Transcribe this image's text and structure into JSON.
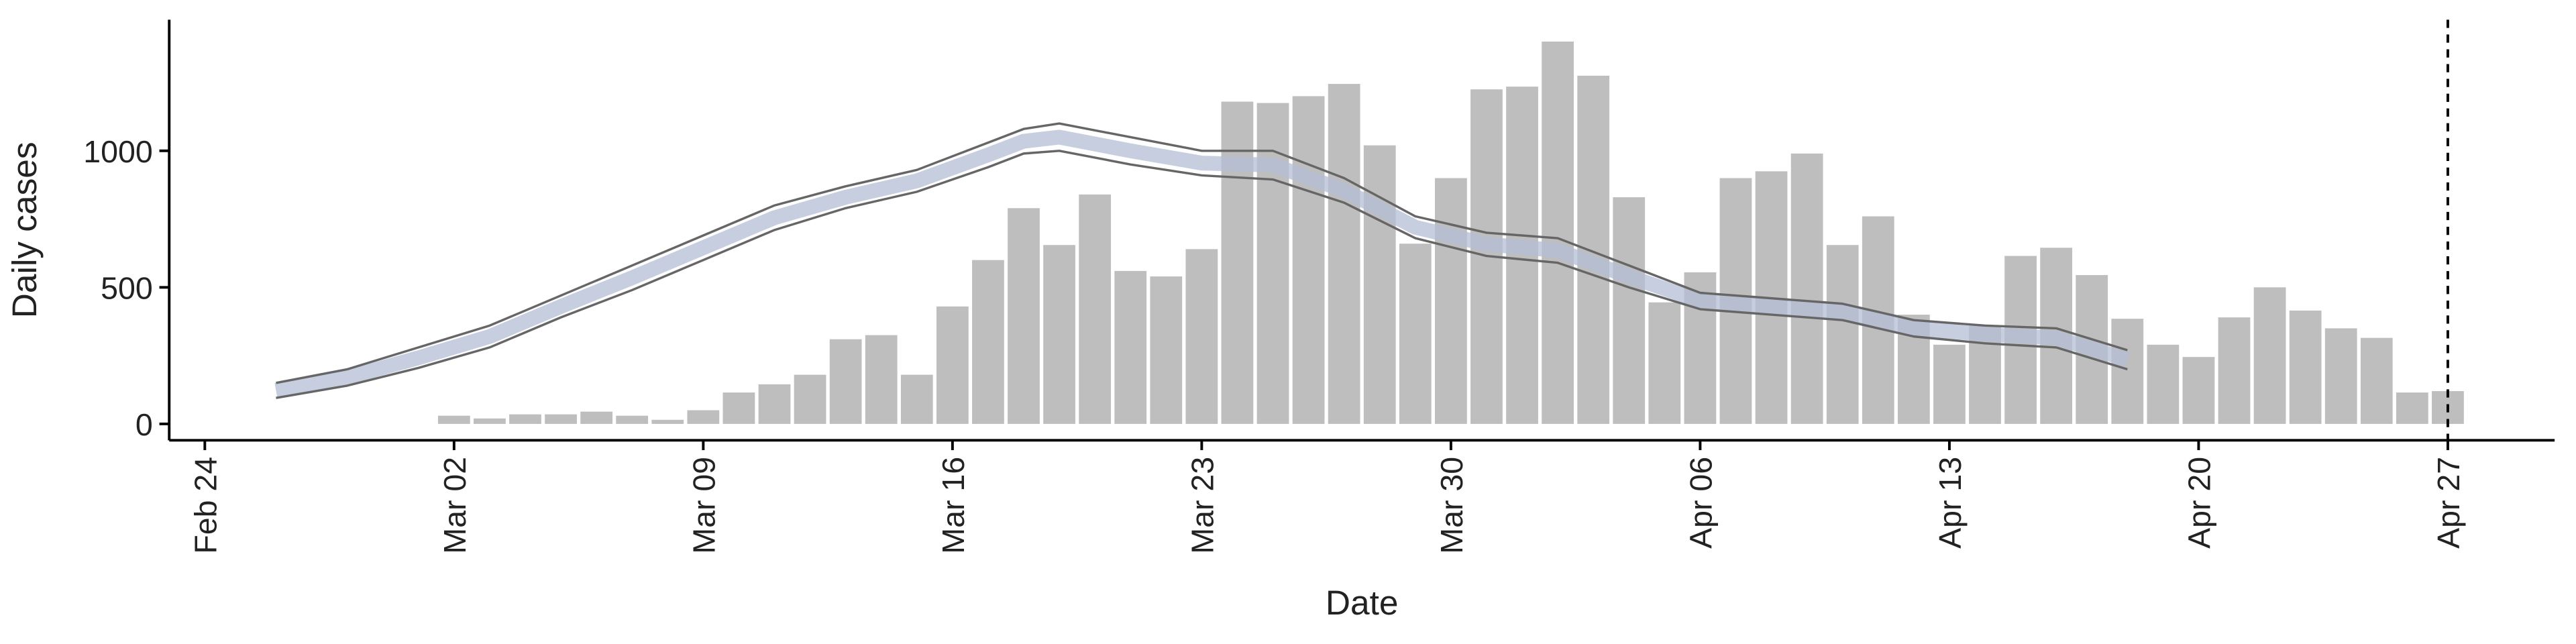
{
  "chart_data": {
    "type": "bar",
    "x_label": "Date",
    "y_label": "Daily cases",
    "x": [
      "Mar 02",
      "Mar 03",
      "Mar 04",
      "Mar 05",
      "Mar 06",
      "Mar 07",
      "Mar 08",
      "Mar 09",
      "Mar 10",
      "Mar 11",
      "Mar 12",
      "Mar 13",
      "Mar 14",
      "Mar 15",
      "Mar 16",
      "Mar 17",
      "Mar 18",
      "Mar 19",
      "Mar 20",
      "Mar 21",
      "Mar 22",
      "Mar 23",
      "Mar 24",
      "Mar 25",
      "Mar 26",
      "Mar 27",
      "Mar 28",
      "Mar 29",
      "Mar 30",
      "Mar 31",
      "Apr 01",
      "Apr 02",
      "Apr 03",
      "Apr 04",
      "Apr 05",
      "Apr 06",
      "Apr 07",
      "Apr 08",
      "Apr 09",
      "Apr 10",
      "Apr 11",
      "Apr 12",
      "Apr 13",
      "Apr 14",
      "Apr 15",
      "Apr 16",
      "Apr 17",
      "Apr 18",
      "Apr 19",
      "Apr 20",
      "Apr 21",
      "Apr 22",
      "Apr 23",
      "Apr 24",
      "Apr 25",
      "Apr 26",
      "Apr 27"
    ],
    "values": [
      30,
      20,
      35,
      35,
      45,
      30,
      15,
      50,
      115,
      145,
      180,
      310,
      325,
      180,
      430,
      600,
      790,
      655,
      840,
      560,
      540,
      640,
      1180,
      1175,
      1200,
      1245,
      1020,
      660,
      900,
      1225,
      1235,
      1400,
      1275,
      830,
      445,
      555,
      900,
      925,
      990,
      655,
      760,
      400,
      290,
      360,
      615,
      645,
      545,
      385,
      290,
      245,
      390,
      500,
      415,
      350,
      315,
      115,
      120
    ],
    "color": "#bebebe",
    "band": {
      "x": [
        "Feb 26",
        "Feb 28",
        "Mar 01",
        "Mar 03",
        "Mar 05",
        "Mar 07",
        "Mar 09",
        "Mar 11",
        "Mar 13",
        "Mar 15",
        "Mar 17",
        "Mar 18",
        "Mar 19",
        "Mar 21",
        "Mar 23",
        "Mar 25",
        "Mar 27",
        "Mar 29",
        "Mar 31",
        "Apr 02",
        "Apr 04",
        "Apr 06",
        "Apr 08",
        "Apr 10",
        "Apr 12",
        "Apr 14",
        "Apr 16",
        "Apr 18"
      ],
      "upper": [
        150,
        200,
        280,
        360,
        470,
        580,
        690,
        800,
        870,
        930,
        1030,
        1080,
        1100,
        1050,
        1000,
        1000,
        900,
        760,
        700,
        680,
        580,
        480,
        460,
        440,
        380,
        360,
        350,
        270
      ],
      "lower": [
        95,
        140,
        205,
        280,
        390,
        490,
        600,
        710,
        790,
        850,
        940,
        990,
        1000,
        950,
        910,
        895,
        810,
        680,
        615,
        590,
        500,
        420,
        400,
        380,
        320,
        295,
        280,
        200
      ],
      "mid": [
        122,
        170,
        242,
        320,
        430,
        535,
        645,
        755,
        830,
        890,
        985,
        1035,
        1050,
        1000,
        955,
        948,
        855,
        720,
        658,
        635,
        540,
        450,
        430,
        410,
        350,
        328,
        315,
        235
      ],
      "line_color": "#666666",
      "mid_color": "#b4bdd6"
    },
    "xlim": [
      "Feb 23",
      "Apr 30"
    ],
    "xticks": [
      "Feb 24",
      "Mar 02",
      "Mar 09",
      "Mar 16",
      "Mar 23",
      "Mar 30",
      "Apr 06",
      "Apr 13",
      "Apr 20",
      "Apr 27"
    ],
    "ylim": [
      -60,
      1480
    ],
    "yticks": [
      0,
      500,
      1000
    ],
    "vline": "Apr 27"
  }
}
